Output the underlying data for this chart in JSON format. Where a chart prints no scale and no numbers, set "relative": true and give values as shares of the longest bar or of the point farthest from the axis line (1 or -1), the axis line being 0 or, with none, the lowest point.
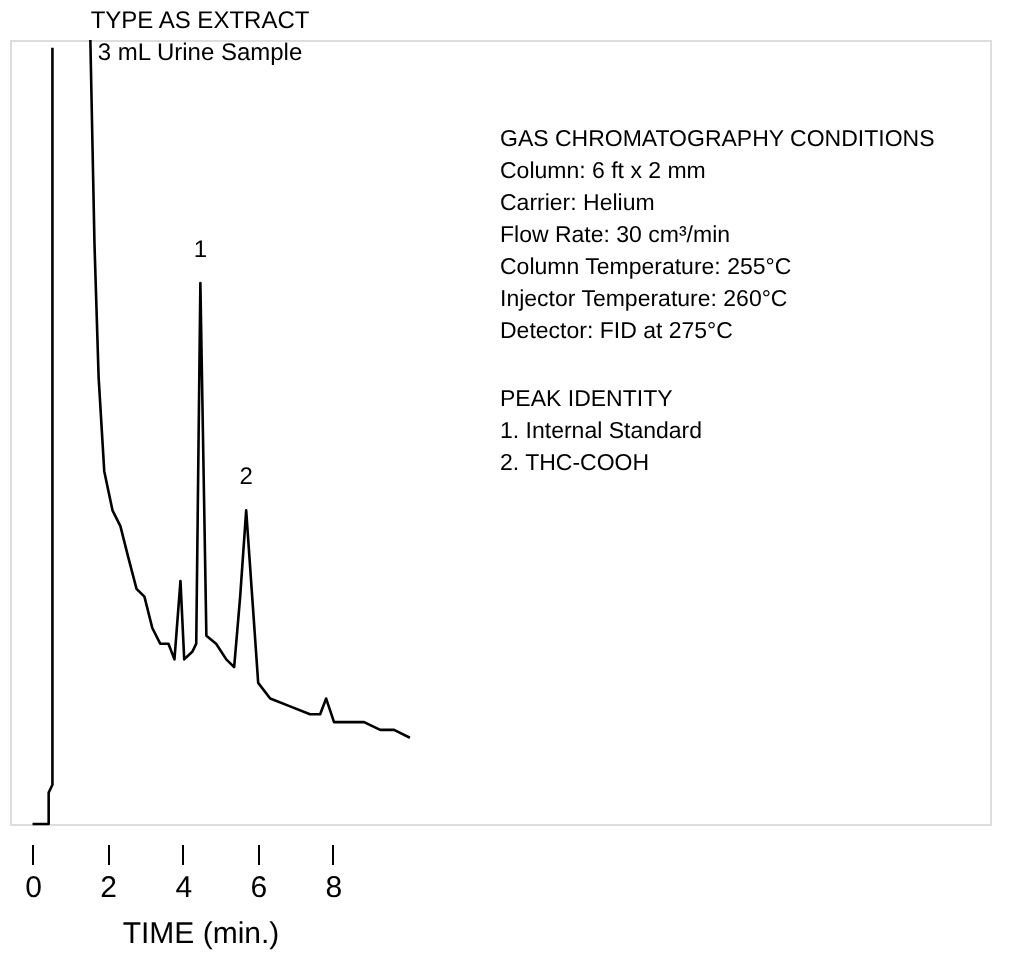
{
  "chart_data": {
    "type": "line",
    "title": "TYPE AS EXTRACT",
    "subtitle": "3 mL Urine Sample",
    "xlabel": "TIME (min.)",
    "relative": true,
    "x": [
      0,
      0.43,
      0.43,
      0.53,
      0.53,
      1.0,
      1.54,
      1.65,
      1.76,
      1.91,
      2.13,
      2.34,
      2.55,
      2.77,
      2.98,
      3.19,
      3.4,
      3.62,
      3.78,
      3.94,
      4.04,
      4.26,
      4.36,
      4.47,
      4.57,
      4.63,
      4.89,
      5.16,
      5.37,
      5.53,
      5.69,
      5.85,
      6.01,
      6.33,
      6.86,
      7.39,
      7.66,
      7.82,
      8.03,
      8.46,
      8.83,
      9.26,
      9.63,
      10.05
    ],
    "series": [
      {
        "color": "#000000",
        "values": [
          0,
          0,
          0.04,
          0.05,
          0.99,
          null,
          1.0,
          0.74,
          0.57,
          0.45,
          0.4,
          0.38,
          0.34,
          0.3,
          0.29,
          0.25,
          0.23,
          0.23,
          0.21,
          0.31,
          0.21,
          0.22,
          0.23,
          0.69,
          0.41,
          0.24,
          0.23,
          0.21,
          0.2,
          0.29,
          0.4,
          0.29,
          0.18,
          0.16,
          0.15,
          0.14,
          0.14,
          0.16,
          0.13,
          0.13,
          0.13,
          0.12,
          0.12,
          0.11
        ]
      }
    ],
    "xlim": [
      -0.6,
      25.5
    ],
    "xticks": [
      0,
      2,
      4,
      6,
      8
    ],
    "grid": false,
    "marker": "none",
    "line_style": "solid",
    "annotations": [
      "GAS CHROMATOGRAPHY CONDITIONS",
      "Column: 6 ft x 2 mm",
      "Carrier: Helium",
      "Flow Rate: 30 cm³/min",
      "Column Temperature: 255°C",
      "Injector Temperature: 260°C",
      "Detector: FID at 275°C",
      "PEAK IDENTITY",
      "1. Internal Standard",
      "2. THC-COOH",
      {
        "text": "1",
        "x": 4.47,
        "y": 0.69
      },
      {
        "text": "2",
        "x": 5.69,
        "y": 0.4
      }
    ]
  }
}
